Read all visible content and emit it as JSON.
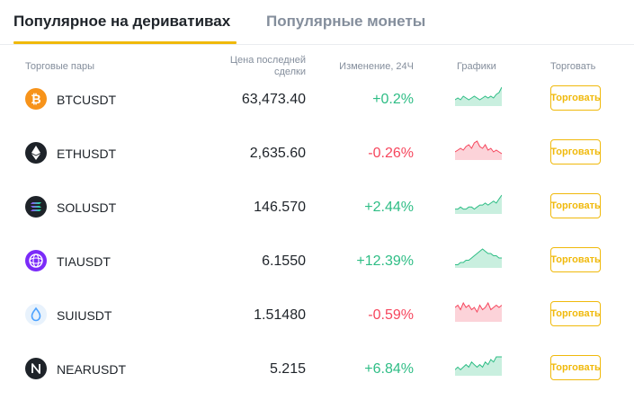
{
  "tabs": [
    {
      "label": "Популярное на деривативах",
      "active": true
    },
    {
      "label": "Популярные монеты",
      "active": false
    }
  ],
  "headers": {
    "pair": "Торговые пары",
    "price_line1": "Цена последней",
    "price_line2": "сделки",
    "change": "Изменение, 24Ч",
    "chart": "Графики",
    "trade": "Торговать"
  },
  "colors": {
    "accent": "#f0b90b",
    "up": "#2ebd85",
    "down": "#f6465d",
    "up_fill": "#c9efdf",
    "down_fill": "#fcd3d9"
  },
  "rows": [
    {
      "symbol": "BTCUSDT",
      "price": "63,473.40",
      "change": "+0.2%",
      "direction": "up",
      "icon": "bitcoin-icon",
      "icon_bg": "#f7931a",
      "spark": [
        3,
        4,
        3,
        5,
        4,
        3,
        4,
        5,
        4,
        3,
        4,
        5,
        4,
        5,
        4,
        6,
        7,
        10
      ]
    },
    {
      "symbol": "ETHUSDT",
      "price": "2,635.60",
      "change": "-0.26%",
      "direction": "down",
      "icon": "ethereum-icon",
      "icon_bg": "#1e2329",
      "spark": [
        4,
        5,
        6,
        5,
        7,
        8,
        6,
        9,
        10,
        7,
        6,
        8,
        5,
        6,
        4,
        5,
        4,
        3
      ]
    },
    {
      "symbol": "SOLUSDT",
      "price": "146.570",
      "change": "+2.44%",
      "direction": "up",
      "icon": "solana-icon",
      "icon_bg": "#1e2329",
      "spark": [
        2,
        2,
        3,
        2,
        2,
        3,
        3,
        2,
        3,
        4,
        4,
        5,
        4,
        5,
        6,
        5,
        7,
        9
      ]
    },
    {
      "symbol": "TIAUSDT",
      "price": "6.1550",
      "change": "+12.39%",
      "direction": "up",
      "icon": "celestia-icon",
      "icon_bg": "#7b2bf9",
      "spark": [
        1,
        1,
        2,
        2,
        3,
        3,
        4,
        5,
        6,
        7,
        8,
        7,
        6,
        6,
        5,
        5,
        4,
        4
      ]
    },
    {
      "symbol": "SUIUSDT",
      "price": "1.51480",
      "change": "-0.59%",
      "direction": "down",
      "icon": "sui-icon",
      "icon_bg": "#e8f2fc",
      "spark": [
        6,
        7,
        5,
        8,
        6,
        7,
        5,
        6,
        4,
        7,
        5,
        6,
        8,
        5,
        6,
        7,
        6,
        7
      ]
    },
    {
      "symbol": "NEARUSDT",
      "price": "5.215",
      "change": "+6.84%",
      "direction": "up",
      "icon": "near-icon",
      "icon_bg": "#1e2329",
      "spark": [
        2,
        3,
        2,
        3,
        4,
        3,
        5,
        4,
        3,
        4,
        3,
        5,
        4,
        6,
        5,
        7,
        7,
        7
      ]
    }
  ],
  "trade_label": "Торговать"
}
